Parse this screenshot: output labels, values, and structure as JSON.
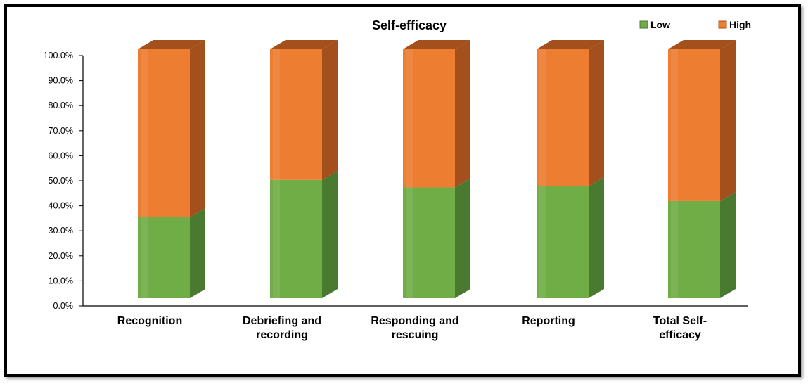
{
  "chart_data": {
    "type": "bar",
    "stacked": true,
    "style": "3d-stacked-column",
    "title": "Self-efficacy",
    "categories": [
      [
        "Recognition"
      ],
      [
        "Debriefing and",
        "recording"
      ],
      [
        "Responding and",
        "rescuing"
      ],
      [
        "Reporting"
      ],
      [
        "Total Self-",
        "efficacy"
      ]
    ],
    "series": [
      {
        "name": "Low",
        "color": "#70ad47",
        "side_color": "#4a7a30",
        "values": [
          32.5,
          47.5,
          44.5,
          45.0,
          39.0
        ]
      },
      {
        "name": "High",
        "color": "#ed7d31",
        "side_color": "#a4501c",
        "values": [
          67.5,
          52.5,
          55.5,
          55.0,
          61.0
        ]
      }
    ],
    "ylim": [
      0,
      100
    ],
    "yticks": [
      "0.0%",
      "10.0%",
      "20.0%",
      "30.0%",
      "40.0%",
      "50.0%",
      "60.0%",
      "70.0%",
      "80.0%",
      "90.0%",
      "100.0%"
    ],
    "xlabel": "",
    "ylabel": "",
    "legend_position": "top-right",
    "grid": false
  }
}
